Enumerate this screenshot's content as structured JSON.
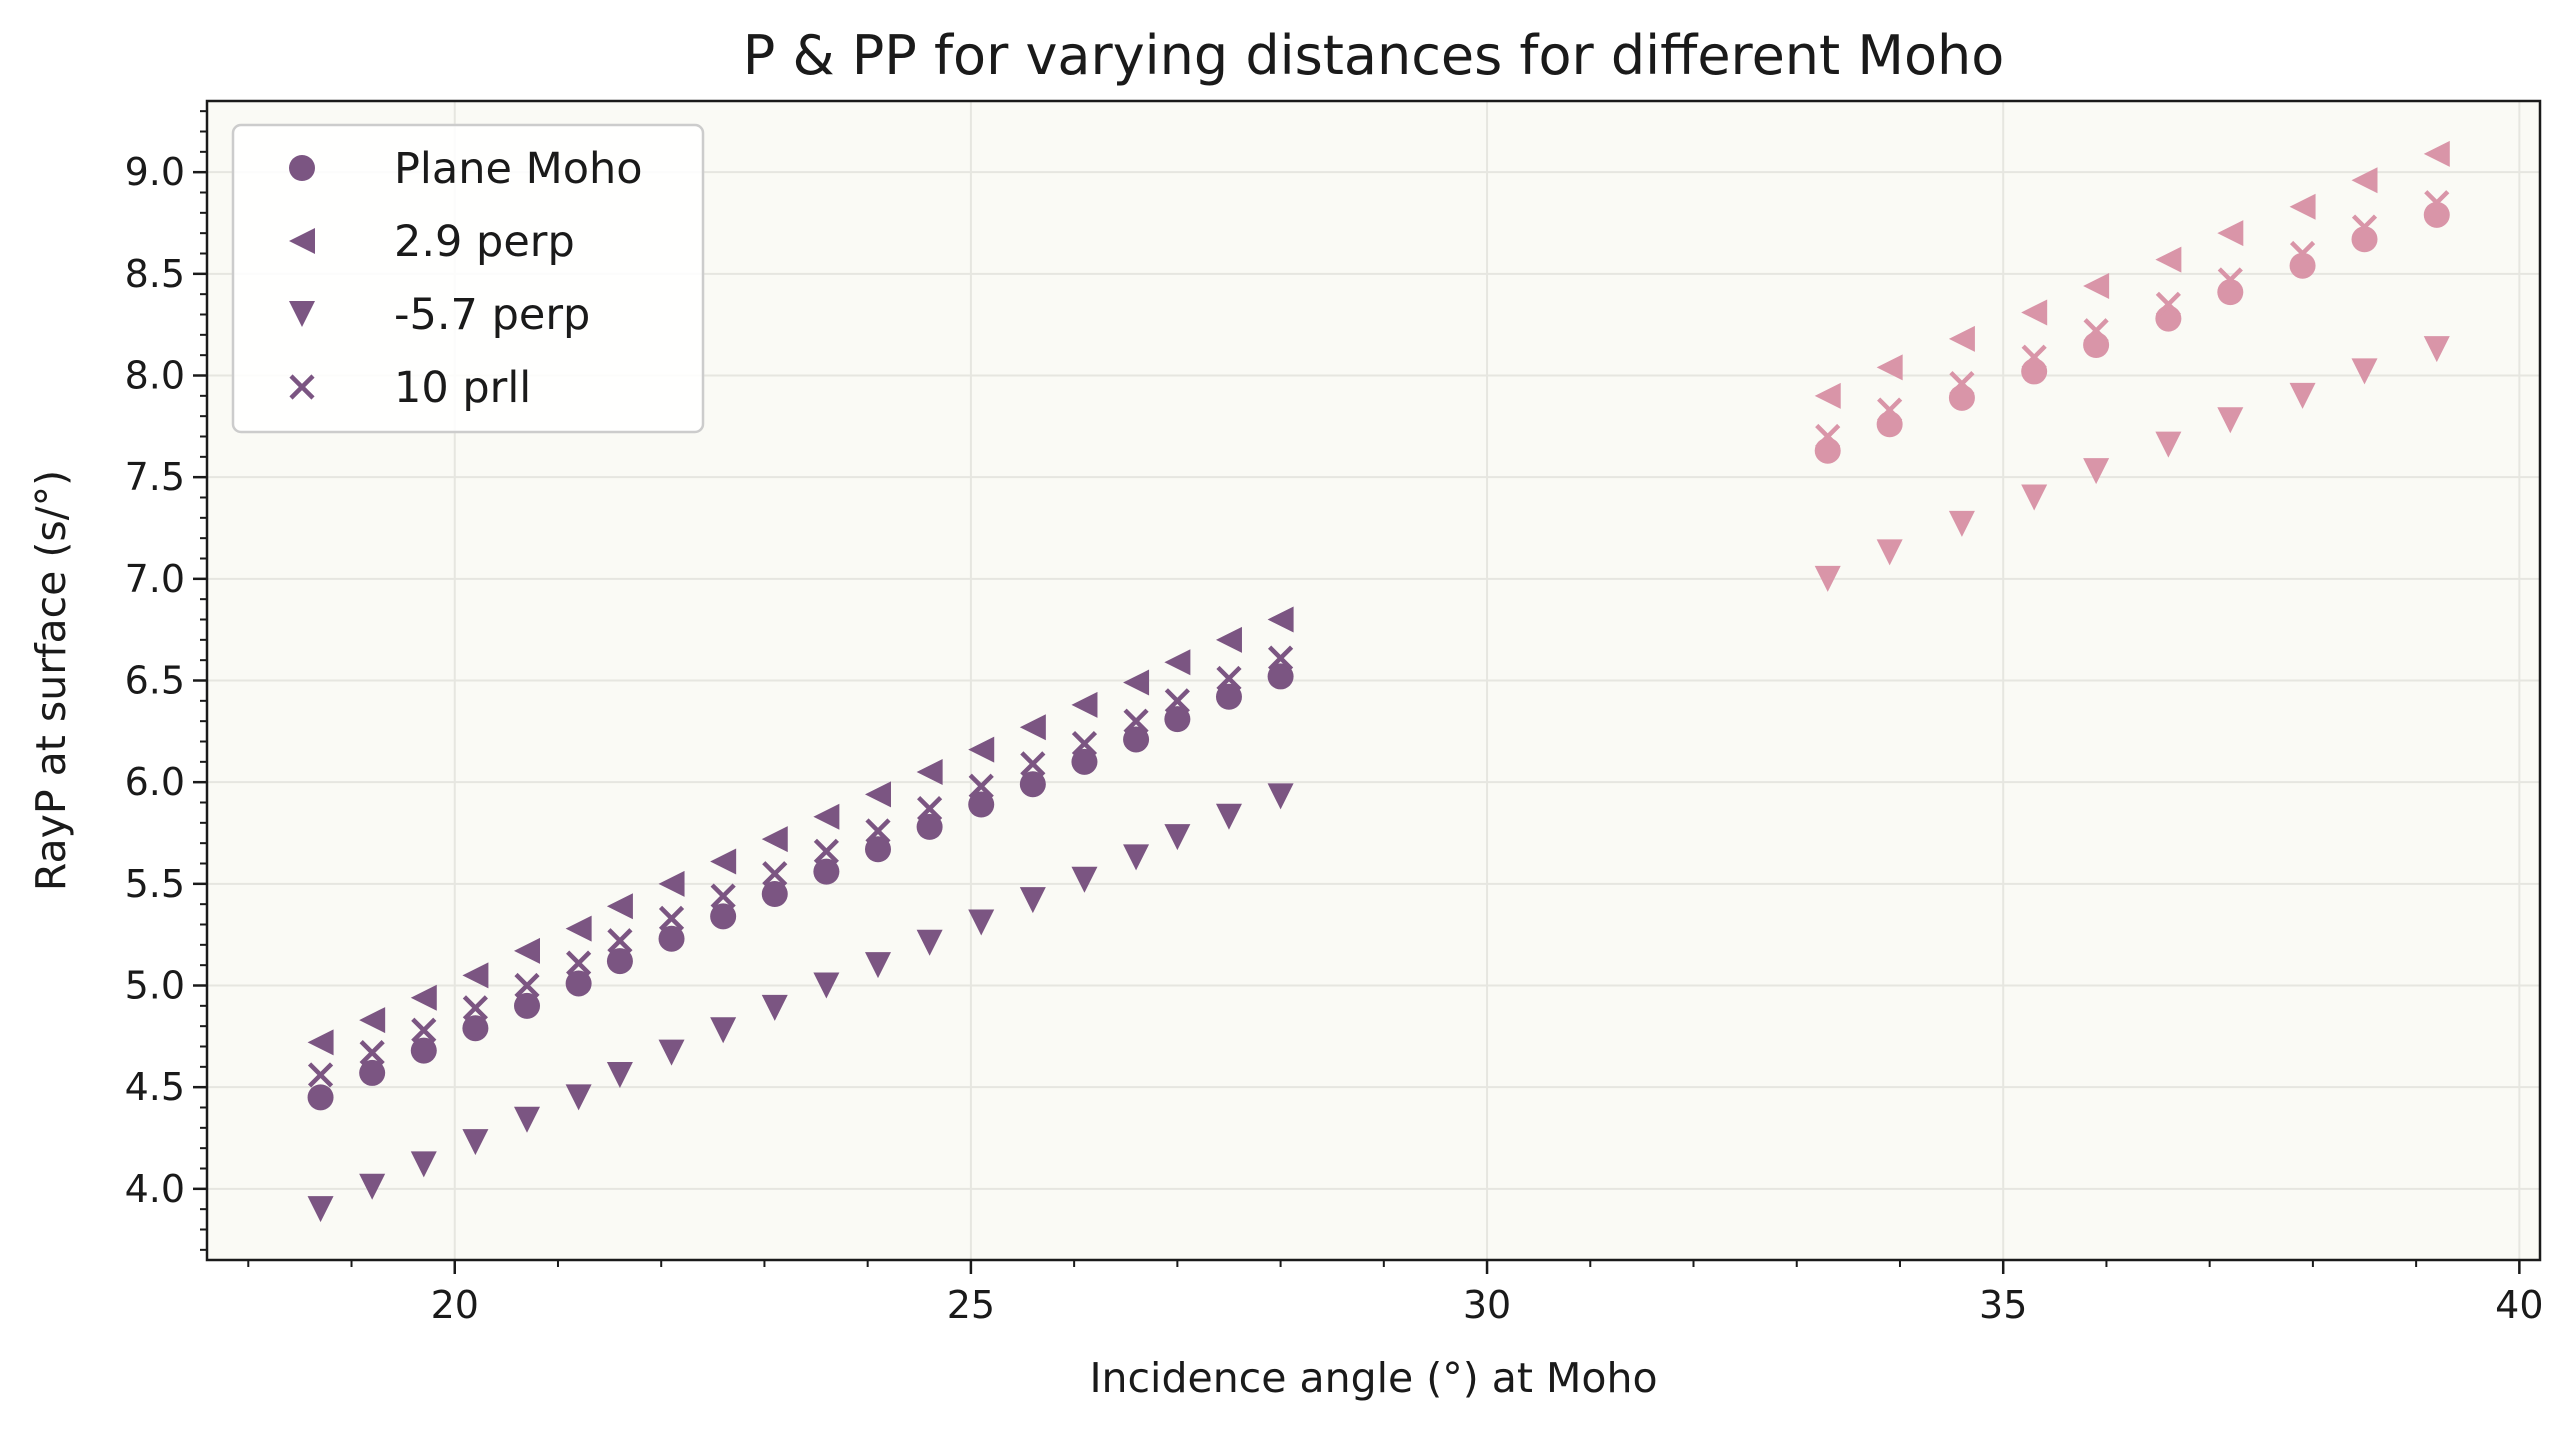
{
  "chart_data": {
    "type": "scatter",
    "title": "P & PP for varying distances for different Moho",
    "xlabel": "Incidence angle (°) at Moho",
    "ylabel": "RayP at surface (s/°)",
    "xlim": [
      17.6,
      40.2
    ],
    "ylim": [
      3.65,
      9.35
    ],
    "x_ticks": [
      20,
      25,
      30,
      35,
      40
    ],
    "x_tick_labels": [
      "20",
      "25",
      "30",
      "35",
      "40"
    ],
    "y_ticks": [
      4.0,
      4.5,
      5.0,
      5.5,
      6.0,
      6.5,
      7.0,
      7.5,
      8.0,
      8.5,
      9.0
    ],
    "y_tick_labels": [
      "4.0",
      "4.5",
      "5.0",
      "5.5",
      "6.0",
      "6.5",
      "7.0",
      "7.5",
      "8.0",
      "8.5",
      "9.0"
    ],
    "grid": true,
    "legend_position": "top-left",
    "colors": {
      "P": "#7b5582",
      "PP": "#d995a8",
      "background": "#fafaf5",
      "grid": "#e6e6e0"
    },
    "groups": [
      {
        "color_key": "P",
        "x": [
          18.7,
          19.2,
          19.7,
          20.2,
          20.7,
          21.2,
          21.6,
          22.1,
          22.6,
          23.1,
          23.6,
          24.1,
          24.6,
          25.1,
          25.6,
          26.1,
          26.6,
          27.0,
          27.5,
          28.0
        ],
        "series": [
          {
            "name": "Plane Moho",
            "marker": "circle",
            "y": [
              4.45,
              4.57,
              4.68,
              4.79,
              4.9,
              5.01,
              5.12,
              5.23,
              5.34,
              5.45,
              5.56,
              5.67,
              5.78,
              5.89,
              5.99,
              6.1,
              6.21,
              6.31,
              6.42,
              6.52
            ]
          },
          {
            "name": "2.9 perp",
            "marker": "triangle-left",
            "y": [
              4.72,
              4.83,
              4.94,
              5.05,
              5.17,
              5.28,
              5.39,
              5.5,
              5.61,
              5.72,
              5.83,
              5.94,
              6.05,
              6.16,
              6.27,
              6.38,
              6.49,
              6.59,
              6.7,
              6.8
            ]
          },
          {
            "name": "-5.7 perp",
            "marker": "triangle-down",
            "y": [
              3.9,
              4.01,
              4.12,
              4.23,
              4.34,
              4.45,
              4.56,
              4.67,
              4.78,
              4.89,
              5.0,
              5.1,
              5.21,
              5.31,
              5.42,
              5.52,
              5.63,
              5.73,
              5.83,
              5.93
            ]
          },
          {
            "name": "10 prll",
            "marker": "x",
            "y": [
              4.56,
              4.67,
              4.78,
              4.89,
              5.0,
              5.11,
              5.22,
              5.33,
              5.44,
              5.55,
              5.66,
              5.76,
              5.87,
              5.98,
              6.09,
              6.19,
              6.3,
              6.4,
              6.51,
              6.61
            ]
          }
        ]
      },
      {
        "color_key": "PP",
        "x": [
          33.3,
          33.9,
          34.6,
          35.3,
          35.9,
          36.6,
          37.2,
          37.9,
          38.5,
          39.2
        ],
        "series": [
          {
            "name": "Plane Moho",
            "marker": "circle",
            "y": [
              7.63,
              7.76,
              7.89,
              8.02,
              8.15,
              8.28,
              8.41,
              8.54,
              8.67,
              8.79
            ]
          },
          {
            "name": "2.9 perp",
            "marker": "triangle-left",
            "y": [
              7.9,
              8.04,
              8.18,
              8.31,
              8.44,
              8.57,
              8.7,
              8.83,
              8.96,
              9.09
            ]
          },
          {
            "name": "-5.7 perp",
            "marker": "triangle-down",
            "y": [
              7.0,
              7.13,
              7.27,
              7.4,
              7.53,
              7.66,
              7.78,
              7.9,
              8.02,
              8.13
            ]
          },
          {
            "name": "10 prll",
            "marker": "x",
            "y": [
              7.7,
              7.83,
              7.96,
              8.09,
              8.22,
              8.35,
              8.47,
              8.6,
              8.73,
              8.85
            ]
          }
        ]
      }
    ],
    "legend": [
      {
        "label": "Plane Moho",
        "marker": "circle"
      },
      {
        "label": "2.9 perp",
        "marker": "triangle-left"
      },
      {
        "label": "-5.7 perp",
        "marker": "triangle-down"
      },
      {
        "label": "10 prll",
        "marker": "x"
      }
    ]
  }
}
